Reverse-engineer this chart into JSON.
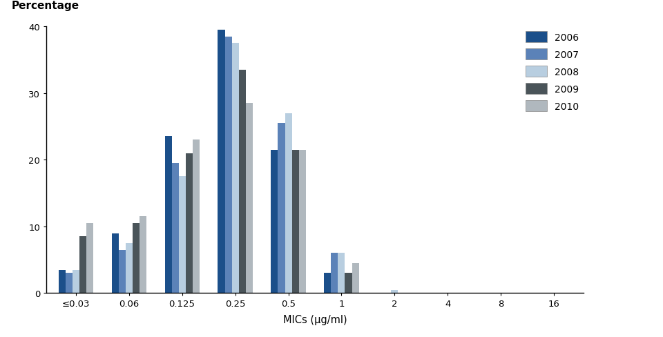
{
  "categories": [
    "≤0.03",
    "0.06",
    "0.125",
    "0.25",
    "0.5",
    "1",
    "2",
    "4",
    "8",
    "16"
  ],
  "series": {
    "2006": [
      3.5,
      9.0,
      23.5,
      39.5,
      21.5,
      3.0,
      0.0,
      0.0,
      0.0,
      0.0
    ],
    "2007": [
      3.0,
      6.5,
      19.5,
      38.5,
      25.5,
      6.0,
      0.0,
      0.0,
      0.0,
      0.0
    ],
    "2008": [
      3.5,
      7.5,
      17.5,
      37.5,
      27.0,
      6.0,
      0.5,
      0.0,
      0.0,
      0.0
    ],
    "2009": [
      8.5,
      10.5,
      21.0,
      33.5,
      21.5,
      3.0,
      0.0,
      0.0,
      0.0,
      0.0
    ],
    "2010": [
      10.5,
      11.5,
      23.0,
      28.5,
      21.5,
      4.5,
      0.0,
      0.0,
      0.0,
      0.0
    ]
  },
  "colors": {
    "2006": "#1b4f8a",
    "2007": "#5b82b8",
    "2008": "#b8cee0",
    "2009": "#4a5459",
    "2010": "#b0b8be"
  },
  "years": [
    "2006",
    "2007",
    "2008",
    "2009",
    "2010"
  ],
  "ylabel": "Percentage",
  "xlabel": "MICs (μg/ml)",
  "ylim": [
    0,
    40
  ],
  "yticks": [
    0,
    10,
    20,
    30,
    40
  ],
  "bar_width": 0.13,
  "figsize": [
    9.6,
    4.89
  ],
  "dpi": 100
}
